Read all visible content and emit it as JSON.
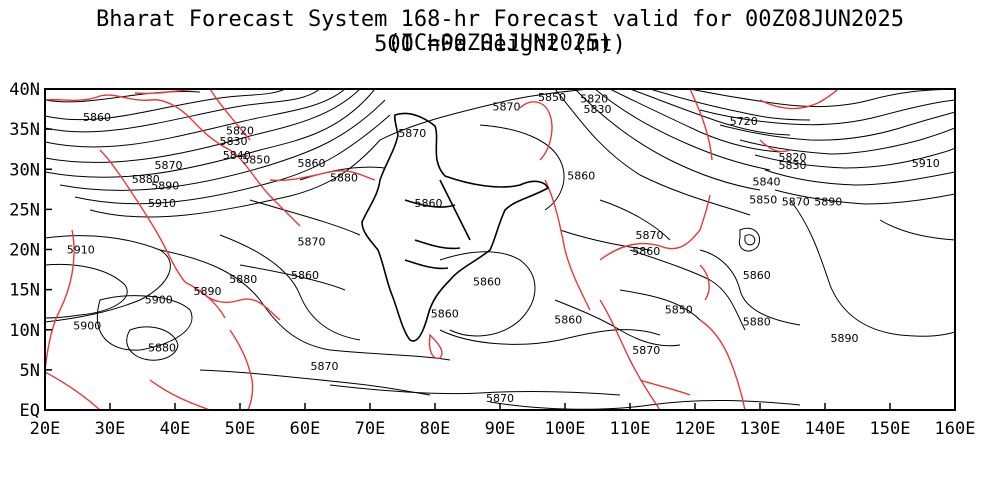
{
  "title_line1": "Bharat Forecast System 168-hr Forecast valid for 00Z08JUN2025 (IC=00Z01JUN2025)",
  "title_line2": "500 hPa Height (mt)",
  "x_ticks": [
    "20E",
    "30E",
    "40E",
    "50E",
    "60E",
    "70E",
    "80E",
    "90E",
    "100E",
    "110E",
    "120E",
    "130E",
    "140E",
    "150E",
    "160E"
  ],
  "y_ticks": [
    "EQ",
    "5N",
    "10N",
    "15N",
    "20N",
    "25N",
    "30N",
    "35N",
    "40N"
  ],
  "colors": {
    "coastline": "#e8383b",
    "contour": "#000000",
    "country_border": "#000000"
  },
  "map_data": {
    "variable": "500 hPa geopotential height",
    "units": "mt",
    "lon_range": [
      20,
      160
    ],
    "lat_range": [
      0,
      40
    ],
    "contour_labels": [
      {
        "value": "5860",
        "lon": 28,
        "lat": 36.5
      },
      {
        "value": "5820",
        "lon": 50,
        "lat": 34.8
      },
      {
        "value": "5830",
        "lon": 49,
        "lat": 33.5
      },
      {
        "value": "5840",
        "lon": 49.5,
        "lat": 31.8
      },
      {
        "value": "5850",
        "lon": 52.5,
        "lat": 31.2
      },
      {
        "value": "5860",
        "lon": 61,
        "lat": 30.8
      },
      {
        "value": "5870",
        "lon": 39,
        "lat": 30.5
      },
      {
        "value": "5880",
        "lon": 35.5,
        "lat": 28.8
      },
      {
        "value": "5890",
        "lon": 38.5,
        "lat": 28.0
      },
      {
        "value": "5910",
        "lon": 38,
        "lat": 25.8
      },
      {
        "value": "5910",
        "lon": 25.5,
        "lat": 20
      },
      {
        "value": "5880",
        "lon": 66,
        "lat": 29
      },
      {
        "value": "5870",
        "lon": 76.5,
        "lat": 34.5
      },
      {
        "value": "5860",
        "lon": 79,
        "lat": 25.8
      },
      {
        "value": "5870",
        "lon": 61,
        "lat": 21
      },
      {
        "value": "5860",
        "lon": 60,
        "lat": 16.8
      },
      {
        "value": "5880",
        "lon": 50.5,
        "lat": 16.3
      },
      {
        "value": "5890",
        "lon": 45,
        "lat": 14.8
      },
      {
        "value": "5900",
        "lon": 37.5,
        "lat": 13.8
      },
      {
        "value": "5900",
        "lon": 26.5,
        "lat": 10.5
      },
      {
        "value": "5880",
        "lon": 38,
        "lat": 7.8
      },
      {
        "value": "5870",
        "lon": 63,
        "lat": 5.5
      },
      {
        "value": "5860",
        "lon": 81.5,
        "lat": 12
      },
      {
        "value": "5860",
        "lon": 88,
        "lat": 16
      },
      {
        "value": "5870",
        "lon": 91,
        "lat": 37.8
      },
      {
        "value": "5850",
        "lon": 98,
        "lat": 39
      },
      {
        "value": "5820",
        "lon": 104.5,
        "lat": 38.8
      },
      {
        "value": "5830",
        "lon": 105,
        "lat": 37.5
      },
      {
        "value": "5860",
        "lon": 102.5,
        "lat": 29.2
      },
      {
        "value": "5870",
        "lon": 113,
        "lat": 21.8
      },
      {
        "value": "5860",
        "lon": 112.5,
        "lat": 19.8
      },
      {
        "value": "5860",
        "lon": 100.5,
        "lat": 11.3
      },
      {
        "value": "5870",
        "lon": 112.5,
        "lat": 7.5
      },
      {
        "value": "5850",
        "lon": 117.5,
        "lat": 12.5
      },
      {
        "value": "5860",
        "lon": 129.5,
        "lat": 16.8
      },
      {
        "value": "5880",
        "lon": 129.5,
        "lat": 11
      },
      {
        "value": "5870",
        "lon": 90,
        "lat": 1.5
      },
      {
        "value": "5840",
        "lon": 131,
        "lat": 28.5
      },
      {
        "value": "5850",
        "lon": 130.5,
        "lat": 26.2
      },
      {
        "value": "5870",
        "lon": 135.5,
        "lat": 26
      },
      {
        "value": "5890",
        "lon": 140.5,
        "lat": 26
      },
      {
        "value": "5910",
        "lon": 155.5,
        "lat": 30.8
      },
      {
        "value": "5890",
        "lon": 143,
        "lat": 9
      },
      {
        "value": "5720",
        "lon": 127.5,
        "lat": 36
      },
      {
        "value": "5830",
        "lon": 135,
        "lat": 30.5
      },
      {
        "value": "5820",
        "lon": 135,
        "lat": 31.5
      }
    ]
  }
}
